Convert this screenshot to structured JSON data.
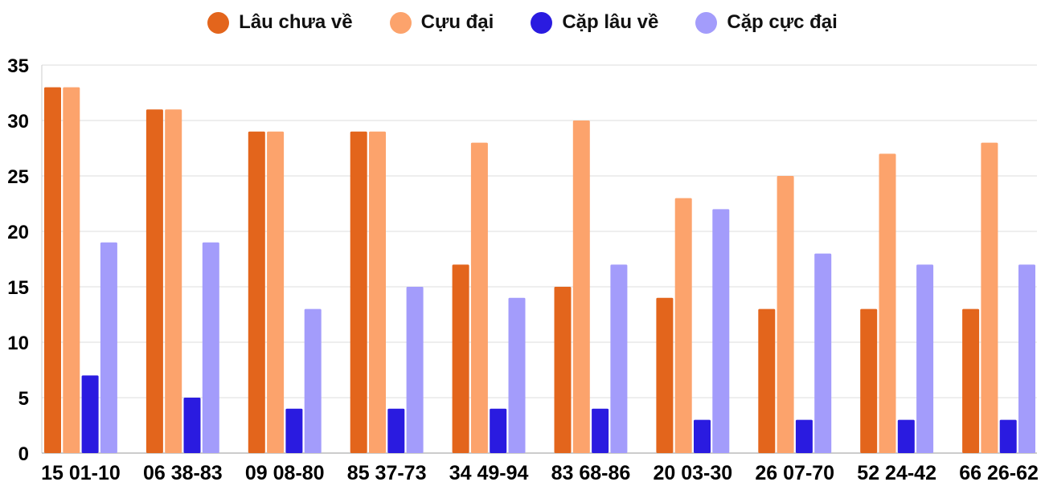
{
  "chart_data": {
    "type": "bar",
    "categories": [
      "15 01-10",
      "06 38-83",
      "09 08-80",
      "85 37-73",
      "34 49-94",
      "83 68-86",
      "20 03-30",
      "26 07-70",
      "52 24-42",
      "66 26-62"
    ],
    "series": [
      {
        "name": "Lâu chưa về",
        "color": "#e3651c",
        "values": [
          33,
          31,
          29,
          29,
          17,
          15,
          14,
          13,
          13,
          13
        ]
      },
      {
        "name": "Cựu đại",
        "color": "#fca36c",
        "values": [
          33,
          31,
          29,
          29,
          28,
          30,
          23,
          25,
          27,
          28
        ]
      },
      {
        "name": "Cặp lâu về",
        "color": "#2a1be0",
        "values": [
          7,
          5,
          4,
          4,
          4,
          4,
          3,
          3,
          3,
          3
        ]
      },
      {
        "name": "Cặp cực đại",
        "color": "#a39cfb",
        "values": [
          19,
          19,
          13,
          15,
          14,
          17,
          22,
          18,
          17,
          17
        ]
      }
    ],
    "ylim": [
      0,
      35
    ],
    "yticks": [
      0,
      5,
      10,
      15,
      20,
      25,
      30,
      35
    ],
    "grid": true,
    "legend_position": "top-center"
  }
}
